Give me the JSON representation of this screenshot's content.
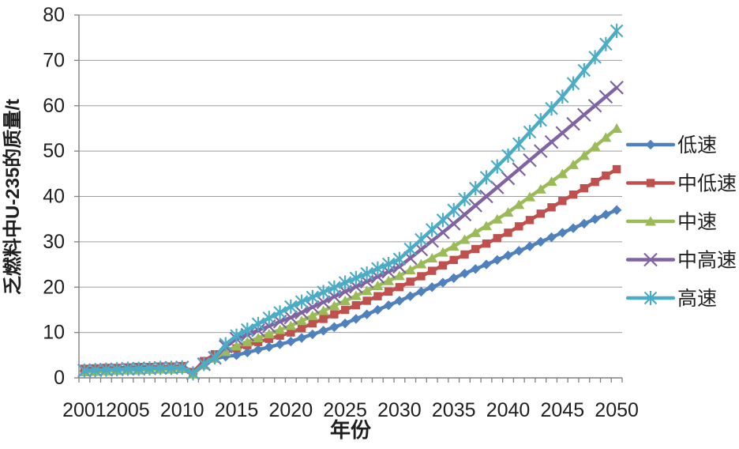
{
  "chart_data": {
    "type": "line",
    "title": "",
    "xlabel": "年份",
    "ylabel": "乏燃料中U-235的质量/t",
    "ylim": [
      0,
      80
    ],
    "y_ticks": [
      0,
      10,
      20,
      30,
      40,
      50,
      60,
      70,
      80
    ],
    "x_tick_labels": [
      2001,
      2005,
      2010,
      2015,
      2020,
      2025,
      2030,
      2035,
      2040,
      2045,
      2050
    ],
    "grid": true,
    "legend_position": "right",
    "axis_color": "#808080",
    "grid_color": "#9d9d9d",
    "text_color": "#1f1f1f",
    "x": [
      2001,
      2002,
      2003,
      2004,
      2005,
      2006,
      2007,
      2008,
      2009,
      2010,
      2011,
      2012,
      2013,
      2014,
      2015,
      2016,
      2017,
      2018,
      2019,
      2020,
      2021,
      2022,
      2023,
      2024,
      2025,
      2026,
      2027,
      2028,
      2029,
      2030,
      2031,
      2032,
      2033,
      2034,
      2035,
      2036,
      2037,
      2038,
      2039,
      2040,
      2041,
      2042,
      2043,
      2044,
      2045,
      2046,
      2047,
      2048,
      2049,
      2050
    ],
    "series": [
      {
        "id": "low-speed",
        "name": "低速",
        "color": "#4F81BD",
        "marker": "diamond",
        "values": [
          1.5,
          1.6,
          1.7,
          1.8,
          1.9,
          1.9,
          2.0,
          2.1,
          2.1,
          2.2,
          0.9,
          2.9,
          4.2,
          4.7,
          5.0,
          5.6,
          6.2,
          6.8,
          7.4,
          8.0,
          8.8,
          9.6,
          10.4,
          11.2,
          12.0,
          13.0,
          14.0,
          15.0,
          16.0,
          17.0,
          18.0,
          19.0,
          20.0,
          21.0,
          22.0,
          23.0,
          24.0,
          25.0,
          26.0,
          27.0,
          28.0,
          29.0,
          30.0,
          31.0,
          32.0,
          33.0,
          34.0,
          35.0,
          36.0,
          37.0
        ]
      },
      {
        "id": "mid-low-speed",
        "name": "中低速",
        "color": "#C0504D",
        "marker": "square",
        "values": [
          2.0,
          2.1,
          2.2,
          2.2,
          2.3,
          2.4,
          2.4,
          2.5,
          2.5,
          2.6,
          1.3,
          3.7,
          5.2,
          5.8,
          6.5,
          7.2,
          7.9,
          8.6,
          9.3,
          10.0,
          11.0,
          12.0,
          13.0,
          14.0,
          15.0,
          16.0,
          17.0,
          18.0,
          19.0,
          20.0,
          21.2,
          22.4,
          23.6,
          24.8,
          26.0,
          27.2,
          28.4,
          29.6,
          30.8,
          32.0,
          33.4,
          34.8,
          36.2,
          37.6,
          39.0,
          40.4,
          41.8,
          43.2,
          44.6,
          46.0
        ]
      },
      {
        "id": "mid-speed",
        "name": "中速",
        "color": "#9BBB59",
        "marker": "triangle",
        "values": [
          1.3,
          1.4,
          1.5,
          1.6,
          1.7,
          1.7,
          1.8,
          1.9,
          1.9,
          2.0,
          0.8,
          2.8,
          4.3,
          5.8,
          7.0,
          7.9,
          8.8,
          9.7,
          10.6,
          11.5,
          12.6,
          13.7,
          14.8,
          15.9,
          17.0,
          18.1,
          19.2,
          20.3,
          21.4,
          22.5,
          23.8,
          25.1,
          26.4,
          27.7,
          29.0,
          30.5,
          32.0,
          33.5,
          35.0,
          36.5,
          38.2,
          39.9,
          41.6,
          43.3,
          45.0,
          47.0,
          49.0,
          51.0,
          53.0,
          55.0
        ]
      },
      {
        "id": "mid-high-speed",
        "name": "中高速",
        "color": "#8064A2",
        "marker": "x",
        "values": [
          1.6,
          1.7,
          1.8,
          1.9,
          2.0,
          2.0,
          2.1,
          2.2,
          2.2,
          2.3,
          1.0,
          3.0,
          4.4,
          6.9,
          8.6,
          9.5,
          10.5,
          11.4,
          12.4,
          13.3,
          14.4,
          15.6,
          16.7,
          17.9,
          19.0,
          20.1,
          21.2,
          22.3,
          23.4,
          24.5,
          26.4,
          28.3,
          30.2,
          32.1,
          34.0,
          36.0,
          38.0,
          40.0,
          42.0,
          44.0,
          46.0,
          48.0,
          50.0,
          52.0,
          54.0,
          56.0,
          58.0,
          60.0,
          62.0,
          64.0
        ]
      },
      {
        "id": "high-speed",
        "name": "高速",
        "color": "#4BACC6",
        "marker": "asterisk",
        "values": [
          1.6,
          1.7,
          1.8,
          1.9,
          2.0,
          2.0,
          2.1,
          2.2,
          2.2,
          2.3,
          1.0,
          3.1,
          4.5,
          7.4,
          9.3,
          10.6,
          11.9,
          13.2,
          14.4,
          15.7,
          16.8,
          17.8,
          18.9,
          19.9,
          21.0,
          22.0,
          23.0,
          24.1,
          25.1,
          26.2,
          28.4,
          30.5,
          32.7,
          34.8,
          37.0,
          39.4,
          41.8,
          44.2,
          46.6,
          49.0,
          51.6,
          54.2,
          56.8,
          59.4,
          62.0,
          64.9,
          67.8,
          70.7,
          73.6,
          76.5
        ]
      }
    ]
  }
}
